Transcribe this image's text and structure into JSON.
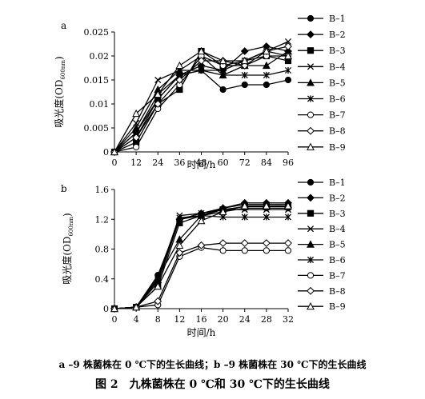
{
  "caption": {
    "sub": "a –9 株菌株在 0 ℃下的生长曲线；b –9 株菌株在 30 ℃下的生长曲线",
    "main": "图 2　九株菌株在 0 ℃和 30 ℃下的生长曲线"
  },
  "chart_data": [
    {
      "type": "line",
      "panel_label": "a",
      "xlabel": "时间/h",
      "ylabel": "吸光度(OD",
      "ylabel_sub": "600nm",
      "ylabel_close": ")",
      "xlim": [
        0,
        96
      ],
      "ylim": [
        0,
        0.025
      ],
      "x_ticks": [
        0,
        12,
        24,
        36,
        48,
        60,
        72,
        84,
        96
      ],
      "y_ticks": [
        0,
        0.005,
        0.01,
        0.015,
        0.02,
        0.025
      ],
      "y_tick_labels": [
        "0",
        "0.005",
        "0.01",
        "0.015",
        "0.02",
        "0.025"
      ],
      "grid": false,
      "legend": "right",
      "x": [
        0,
        12,
        24,
        36,
        48,
        60,
        72,
        84,
        96
      ],
      "series": [
        {
          "name": "B–1",
          "marker": "circle-filled",
          "values": [
            0,
            0.003,
            0.011,
            0.016,
            0.017,
            0.013,
            0.014,
            0.014,
            0.015
          ]
        },
        {
          "name": "B–2",
          "marker": "diamond-filled",
          "values": [
            0,
            0.004,
            0.012,
            0.016,
            0.018,
            0.017,
            0.021,
            0.022,
            0.021
          ]
        },
        {
          "name": "B–3",
          "marker": "square-filled",
          "values": [
            0,
            0.002,
            0.01,
            0.013,
            0.021,
            0.018,
            0.018,
            0.02,
            0.019
          ]
        },
        {
          "name": "B–4",
          "marker": "x",
          "values": [
            0,
            0.006,
            0.015,
            0.017,
            0.017,
            0.017,
            0.019,
            0.021,
            0.023
          ]
        },
        {
          "name": "B–5",
          "marker": "triangle-filled",
          "values": [
            0,
            0.005,
            0.013,
            0.017,
            0.02,
            0.016,
            0.018,
            0.018,
            0.021
          ]
        },
        {
          "name": "B–6",
          "marker": "asterisk",
          "values": [
            0,
            0.004,
            0.011,
            0.016,
            0.017,
            0.016,
            0.016,
            0.016,
            0.017
          ]
        },
        {
          "name": "B–7",
          "marker": "circle-open",
          "values": [
            0,
            0.001,
            0.009,
            0.014,
            0.02,
            0.018,
            0.019,
            0.02,
            0.02
          ]
        },
        {
          "name": "B–8",
          "marker": "diamond-open",
          "values": [
            0,
            0.003,
            0.01,
            0.015,
            0.019,
            0.019,
            0.018,
            0.021,
            0.022
          ]
        },
        {
          "name": "B–9",
          "marker": "triangle-open",
          "values": [
            0,
            0.008,
            0.012,
            0.018,
            0.021,
            0.019,
            0.019,
            0.021,
            0.02
          ]
        }
      ]
    },
    {
      "type": "line",
      "panel_label": "b",
      "xlabel": "时间/h",
      "ylabel": "吸光度(OD",
      "ylabel_sub": "600nm",
      "ylabel_close": ")",
      "xlim": [
        0,
        32
      ],
      "ylim": [
        0,
        1.6
      ],
      "x_ticks": [
        0,
        4,
        8,
        12,
        16,
        20,
        24,
        28,
        32
      ],
      "y_ticks": [
        0,
        0.4,
        0.8,
        1.2,
        1.6
      ],
      "y_tick_labels": [
        "0",
        "0.4",
        "0.8",
        "1.2",
        "1.6"
      ],
      "grid": false,
      "legend": "right",
      "x": [
        0,
        4,
        8,
        12,
        16,
        20,
        24,
        28,
        32
      ],
      "series": [
        {
          "name": "B–1",
          "marker": "circle-filled",
          "values": [
            0,
            0.02,
            0.45,
            1.2,
            1.25,
            1.3,
            1.35,
            1.35,
            1.35
          ]
        },
        {
          "name": "B–2",
          "marker": "diamond-filled",
          "values": [
            0,
            0.02,
            0.35,
            1.2,
            1.28,
            1.35,
            1.42,
            1.42,
            1.42
          ]
        },
        {
          "name": "B–3",
          "marker": "square-filled",
          "values": [
            0,
            0.02,
            0.3,
            1.15,
            1.25,
            1.33,
            1.37,
            1.37,
            1.37
          ]
        },
        {
          "name": "B–4",
          "marker": "x",
          "values": [
            0,
            0.02,
            0.4,
            1.25,
            1.28,
            1.33,
            1.33,
            1.33,
            1.33
          ]
        },
        {
          "name": "B–5",
          "marker": "triangle-filled",
          "values": [
            0,
            0.02,
            0.42,
            0.93,
            1.25,
            1.35,
            1.4,
            1.4,
            1.4
          ]
        },
        {
          "name": "B–6",
          "marker": "asterisk",
          "values": [
            0,
            0.02,
            0.38,
            1.22,
            1.25,
            1.23,
            1.23,
            1.23,
            1.23
          ]
        },
        {
          "name": "B–7",
          "marker": "circle-open",
          "values": [
            0,
            0.02,
            0.05,
            0.7,
            0.82,
            0.78,
            0.78,
            0.78,
            0.78
          ]
        },
        {
          "name": "B–8",
          "marker": "diamond-open",
          "values": [
            0,
            0.02,
            0.1,
            0.75,
            0.85,
            0.88,
            0.88,
            0.88,
            0.88
          ]
        },
        {
          "name": "B–9",
          "marker": "triangle-open",
          "values": [
            0,
            0.02,
            0.3,
            0.85,
            1.18,
            1.3,
            1.38,
            1.38,
            1.38
          ]
        }
      ]
    }
  ]
}
